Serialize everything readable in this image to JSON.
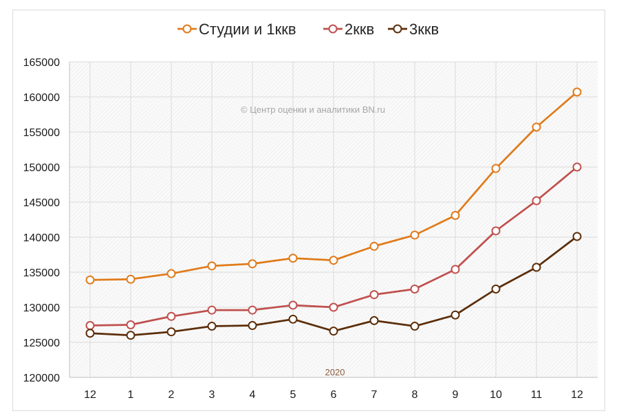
{
  "chart_data": {
    "type": "line",
    "title": "",
    "xlabel": "2020",
    "ylabel": "",
    "categories": [
      "12",
      "1",
      "2",
      "3",
      "4",
      "5",
      "6",
      "7",
      "8",
      "9",
      "10",
      "11",
      "12"
    ],
    "ylim": [
      120000,
      165000
    ],
    "yticks": [
      "120000",
      "125000",
      "130000",
      "135000",
      "140000",
      "145000",
      "150000",
      "155000",
      "160000",
      "165000"
    ],
    "grid": true,
    "legend_position": "top",
    "watermark": "© Центр оценки и аналитики BN.ru",
    "year_color": "#8c5a3c",
    "series": [
      {
        "name": "Студии и 1ккв",
        "color": "#e07b1a",
        "values": [
          133900,
          134000,
          134800,
          135900,
          136200,
          137000,
          136700,
          138700,
          140300,
          143100,
          149800,
          155700,
          160700
        ]
      },
      {
        "name": "2ккв",
        "color": "#c0504d",
        "values": [
          127400,
          127500,
          128700,
          129600,
          129600,
          130300,
          130000,
          131800,
          132600,
          135400,
          140900,
          145200,
          150000
        ]
      },
      {
        "name": "3ккв",
        "color": "#5c2e0a",
        "values": [
          126300,
          126000,
          126500,
          127300,
          127400,
          128300,
          126600,
          128100,
          127300,
          128900,
          132600,
          135700,
          140100
        ]
      }
    ]
  }
}
